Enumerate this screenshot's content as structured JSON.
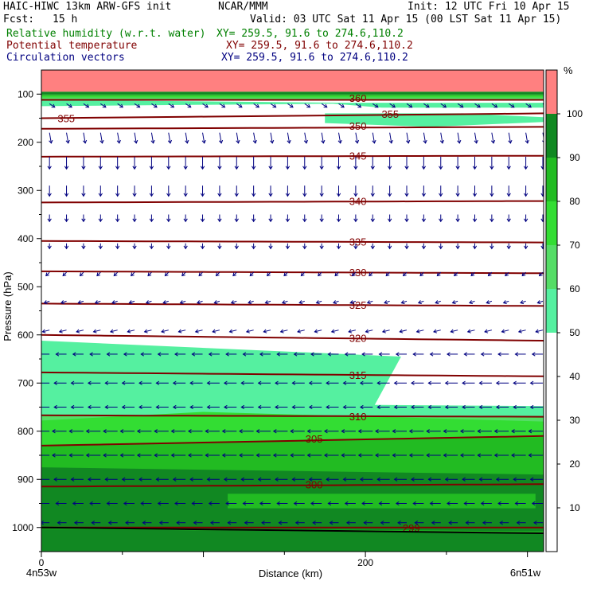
{
  "header": {
    "model_title": "HAIC-HIWC 13km ARW-GFS init",
    "org": "NCAR/MMM",
    "init_time": "Init: 12 UTC Fri 10 Apr 15",
    "forecast_label": "Fcst:",
    "forecast_hours": "15 h",
    "valid_time": "Valid: 03 UTC Sat 11 Apr 15 (00 LST Sat 11 Apr 15)"
  },
  "fields": [
    {
      "name": "Relative humidity (w.r.t. water)",
      "xy": "XY= 259.5, 91.6 to 274.6,110.2",
      "color": "#008000"
    },
    {
      "name": "Potential temperature",
      "xy": "XY= 259.5, 91.6 to 274.6,110.2",
      "color": "#800000"
    },
    {
      "name": "Circulation vectors",
      "xy": "XY= 259.5, 91.6 to 274.6,110.2",
      "color": "#000080"
    }
  ],
  "chart_data": {
    "type": "cross-section",
    "xlabel": "Distance (km)",
    "ylabel": "Pressure (hPa)",
    "x_ticks": [
      0,
      200
    ],
    "y_ticks": [
      100,
      200,
      300,
      400,
      500,
      600,
      700,
      800,
      900,
      1000
    ],
    "xlim": [
      0,
      310
    ],
    "ylim": [
      1050,
      50
    ],
    "endpoint_labels": {
      "left": "4n53w",
      "right": "6n51w"
    },
    "colorbar": {
      "unit": "%",
      "ticks": [
        10,
        20,
        30,
        40,
        50,
        60,
        70,
        80,
        90,
        100
      ],
      "bands": [
        {
          "from": 50,
          "to": 60,
          "color": "#55f0a0"
        },
        {
          "from": 60,
          "to": 70,
          "color": "#55dd66"
        },
        {
          "from": 70,
          "to": 80,
          "color": "#33dd33"
        },
        {
          "from": 80,
          "to": 90,
          "color": "#22bb22"
        },
        {
          "from": 90,
          "to": 100,
          "color": "#118822"
        },
        {
          "from": 100,
          "to": 110,
          "color": "#ff8080"
        }
      ]
    },
    "isentropes": [
      {
        "theta": 360,
        "pressure": [
          112,
          112
        ]
      },
      {
        "theta": 355,
        "pressure": [
          150,
          140
        ]
      },
      {
        "theta": 350,
        "pressure": [
          172,
          168
        ]
      },
      {
        "theta": 345,
        "pressure": [
          230,
          228
        ]
      },
      {
        "theta": 340,
        "pressure": [
          325,
          322
        ]
      },
      {
        "theta": 335,
        "pressure": [
          405,
          408
        ]
      },
      {
        "theta": 330,
        "pressure": [
          468,
          472
        ]
      },
      {
        "theta": 325,
        "pressure": [
          535,
          540
        ]
      },
      {
        "theta": 320,
        "pressure": [
          600,
          612
        ]
      },
      {
        "theta": 315,
        "pressure": [
          678,
          686
        ]
      },
      {
        "theta": 310,
        "pressure": [
          767,
          770
        ]
      },
      {
        "theta": 305,
        "pressure": [
          830,
          810
        ]
      },
      {
        "theta": 300,
        "pressure": [
          915,
          910
        ]
      },
      {
        "theta": 299,
        "pressure": [
          1000,
          1000
        ]
      }
    ],
    "contour_labels": [
      {
        "text": "360",
        "x": 190,
        "p": 108
      },
      {
        "text": "355",
        "x": 10,
        "p": 150
      },
      {
        "text": "355",
        "x": 210,
        "p": 141
      },
      {
        "text": "350",
        "x": 190,
        "p": 166
      },
      {
        "text": "345",
        "x": 190,
        "p": 228
      },
      {
        "text": "340",
        "x": 190,
        "p": 322
      },
      {
        "text": "335",
        "x": 190,
        "p": 406
      },
      {
        "text": "330",
        "x": 190,
        "p": 470
      },
      {
        "text": "325",
        "x": 190,
        "p": 538
      },
      {
        "text": "320",
        "x": 190,
        "p": 606
      },
      {
        "text": "315",
        "x": 190,
        "p": 683
      },
      {
        "text": "310",
        "x": 190,
        "p": 769
      },
      {
        "text": "305",
        "x": 163,
        "p": 815
      },
      {
        "text": "300",
        "x": 163,
        "p": 910
      },
      {
        "text": "299",
        "x": 223,
        "p": 1000
      }
    ],
    "rh_regions": [
      {
        "level": 100,
        "points": [
          [
            0,
            50
          ],
          [
            310,
            50
          ],
          [
            310,
            95
          ],
          [
            0,
            95
          ]
        ]
      },
      {
        "level": 90,
        "points": [
          [
            0,
            95
          ],
          [
            310,
            95
          ],
          [
            310,
            101
          ],
          [
            0,
            101
          ]
        ]
      },
      {
        "level": 80,
        "points": [
          [
            0,
            101
          ],
          [
            310,
            101
          ],
          [
            310,
            104
          ],
          [
            0,
            104
          ]
        ]
      },
      {
        "level": 70,
        "points": [
          [
            0,
            104
          ],
          [
            310,
            104
          ],
          [
            310,
            107
          ],
          [
            0,
            107
          ]
        ]
      },
      {
        "level": 60,
        "points": [
          [
            0,
            107
          ],
          [
            310,
            107
          ],
          [
            310,
            112
          ],
          [
            0,
            112
          ]
        ]
      },
      {
        "level": 50,
        "points": [
          [
            0,
            112
          ],
          [
            190,
            118
          ],
          [
            310,
            118
          ],
          [
            310,
            128
          ],
          [
            210,
            128
          ],
          [
            180,
            120
          ],
          [
            0,
            125
          ]
        ]
      },
      {
        "level": 50,
        "points": [
          [
            175,
            140
          ],
          [
            260,
            140
          ],
          [
            310,
            148
          ],
          [
            310,
            158
          ],
          [
            240,
            168
          ],
          [
            175,
            160
          ]
        ]
      },
      {
        "level": 50,
        "points": [
          [
            0,
            612
          ],
          [
            222,
            645
          ],
          [
            205,
            750
          ],
          [
            0,
            750
          ]
        ]
      },
      {
        "level": 50,
        "points": [
          [
            0,
            740
          ],
          [
            310,
            748
          ],
          [
            310,
            785
          ],
          [
            0,
            785
          ]
        ]
      },
      {
        "level": 60,
        "points": [
          [
            0,
            768
          ],
          [
            310,
            770
          ],
          [
            310,
            790
          ],
          [
            0,
            790
          ]
        ]
      },
      {
        "level": 70,
        "points": [
          [
            0,
            778
          ],
          [
            100,
            760
          ],
          [
            310,
            780
          ],
          [
            310,
            1050
          ],
          [
            0,
            1050
          ]
        ]
      },
      {
        "level": 80,
        "points": [
          [
            0,
            830
          ],
          [
            310,
            812
          ],
          [
            310,
            1050
          ],
          [
            0,
            1050
          ]
        ]
      },
      {
        "level": 90,
        "points": [
          [
            0,
            875
          ],
          [
            100,
            880
          ],
          [
            310,
            890
          ],
          [
            310,
            1050
          ],
          [
            0,
            1050
          ]
        ]
      },
      {
        "level": 90,
        "points": [
          [
            0,
            915
          ],
          [
            310,
            905
          ],
          [
            310,
            1008
          ],
          [
            0,
            1000
          ]
        ]
      },
      {
        "level": 80,
        "points": [
          [
            115,
            930
          ],
          [
            305,
            930
          ],
          [
            305,
            960
          ],
          [
            115,
            960
          ]
        ]
      },
      {
        "level": 80,
        "points": [
          [
            0,
            1000
          ],
          [
            310,
            1008
          ],
          [
            310,
            1012
          ],
          [
            0,
            1003
          ]
        ]
      }
    ],
    "wind_vectors": {
      "rows": [
        {
          "p": 120,
          "u": 0.3,
          "w": -0.2
        },
        {
          "p": 180,
          "u": 0.1,
          "w": -0.6
        },
        {
          "p": 230,
          "u": 0.0,
          "w": -0.7
        },
        {
          "p": 290,
          "u": 0.0,
          "w": -0.6
        },
        {
          "p": 350,
          "u": 0.0,
          "w": -0.4
        },
        {
          "p": 410,
          "u": 0.0,
          "w": -0.3
        },
        {
          "p": 470,
          "u": -0.2,
          "w": -0.2
        },
        {
          "p": 530,
          "u": -0.3,
          "w": -0.1
        },
        {
          "p": 590,
          "u": -0.4,
          "w": -0.1
        },
        {
          "p": 640,
          "u": -0.6,
          "w": 0.0
        },
        {
          "p": 700,
          "u": -0.7,
          "w": 0.0
        },
        {
          "p": 750,
          "u": -0.7,
          "w": 0.0
        },
        {
          "p": 800,
          "u": -0.8,
          "w": 0.0
        },
        {
          "p": 850,
          "u": -0.8,
          "w": 0.0
        },
        {
          "p": 900,
          "u": -0.7,
          "w": 0.0
        },
        {
          "p": 950,
          "u": -0.6,
          "w": 0.0
        },
        {
          "p": 990,
          "u": -0.5,
          "w": 0.0
        }
      ],
      "column_spacing_km": 10.5,
      "color": "#000080"
    },
    "terrain_line_pressure": [
      1000,
      1012
    ]
  }
}
